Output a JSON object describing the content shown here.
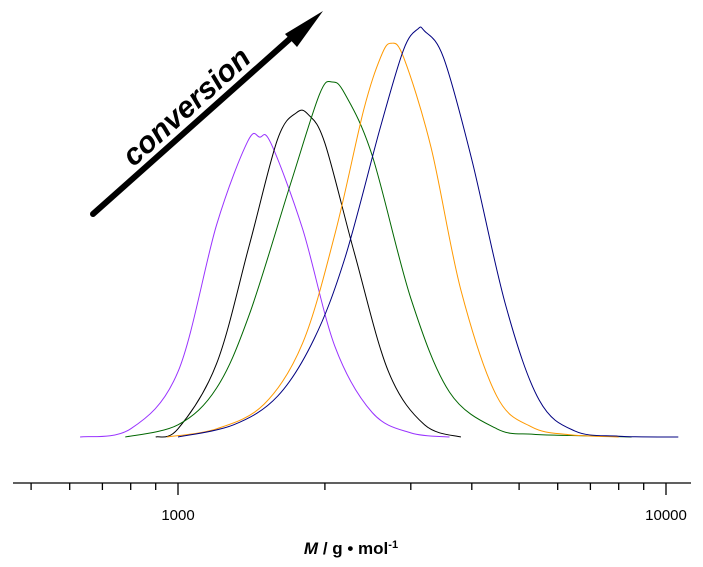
{
  "chart_data": {
    "type": "line",
    "xscale": "log",
    "xlim": [
      500,
      13000
    ],
    "ylim": [
      0,
      1
    ],
    "grid": false,
    "legend": "none",
    "xticks": [
      1000,
      10000
    ],
    "xtick_labels": [
      "1000",
      "10000"
    ],
    "xlabel": {
      "symbol": "M",
      "rest": " / g • mol",
      "sup": "-1"
    },
    "annotation": "conversion",
    "series": [
      {
        "color": "#9933ff",
        "x": [
          630,
          800,
          1000,
          1200,
          1390,
          1470,
          1550,
          1800,
          2100,
          2500,
          3000,
          3600
        ],
        "y": [
          0.0,
          0.02,
          0.16,
          0.52,
          0.725,
          0.735,
          0.72,
          0.51,
          0.22,
          0.06,
          0.01,
          0.0
        ]
      },
      {
        "color": "#000000",
        "x": [
          900,
          1000,
          1200,
          1400,
          1600,
          1750,
          1850,
          2000,
          2300,
          2700,
          3200,
          3800
        ],
        "y": [
          0.0,
          0.02,
          0.18,
          0.47,
          0.73,
          0.795,
          0.79,
          0.72,
          0.45,
          0.16,
          0.03,
          0.0
        ]
      },
      {
        "color": "#006600",
        "x": [
          780,
          1000,
          1200,
          1400,
          1700,
          1950,
          2070,
          2200,
          2500,
          3000,
          3600,
          4500,
          5300,
          6200,
          7500,
          8500
        ],
        "y": [
          0.0,
          0.03,
          0.12,
          0.3,
          0.62,
          0.84,
          0.87,
          0.84,
          0.69,
          0.34,
          0.11,
          0.02,
          0.007,
          0.004,
          0.002,
          0.0
        ]
      },
      {
        "color": "#ff9900",
        "x": [
          950,
          1200,
          1500,
          1800,
          2100,
          2400,
          2600,
          2730,
          2900,
          3300,
          3800,
          4500,
          5300,
          6300,
          8000
        ],
        "y": [
          0.0,
          0.02,
          0.08,
          0.23,
          0.5,
          0.8,
          0.93,
          0.965,
          0.93,
          0.71,
          0.36,
          0.1,
          0.025,
          0.006,
          0.0
        ]
      },
      {
        "color": "#000080",
        "x": [
          1000,
          1300,
          1600,
          1900,
          2200,
          2600,
          2900,
          3100,
          3200,
          3500,
          4000,
          4700,
          5500,
          6500,
          8000,
          10600
        ],
        "y": [
          0.0,
          0.03,
          0.1,
          0.24,
          0.44,
          0.76,
          0.95,
          1.0,
          0.995,
          0.93,
          0.68,
          0.32,
          0.09,
          0.015,
          0.002,
          0.0
        ]
      }
    ]
  }
}
